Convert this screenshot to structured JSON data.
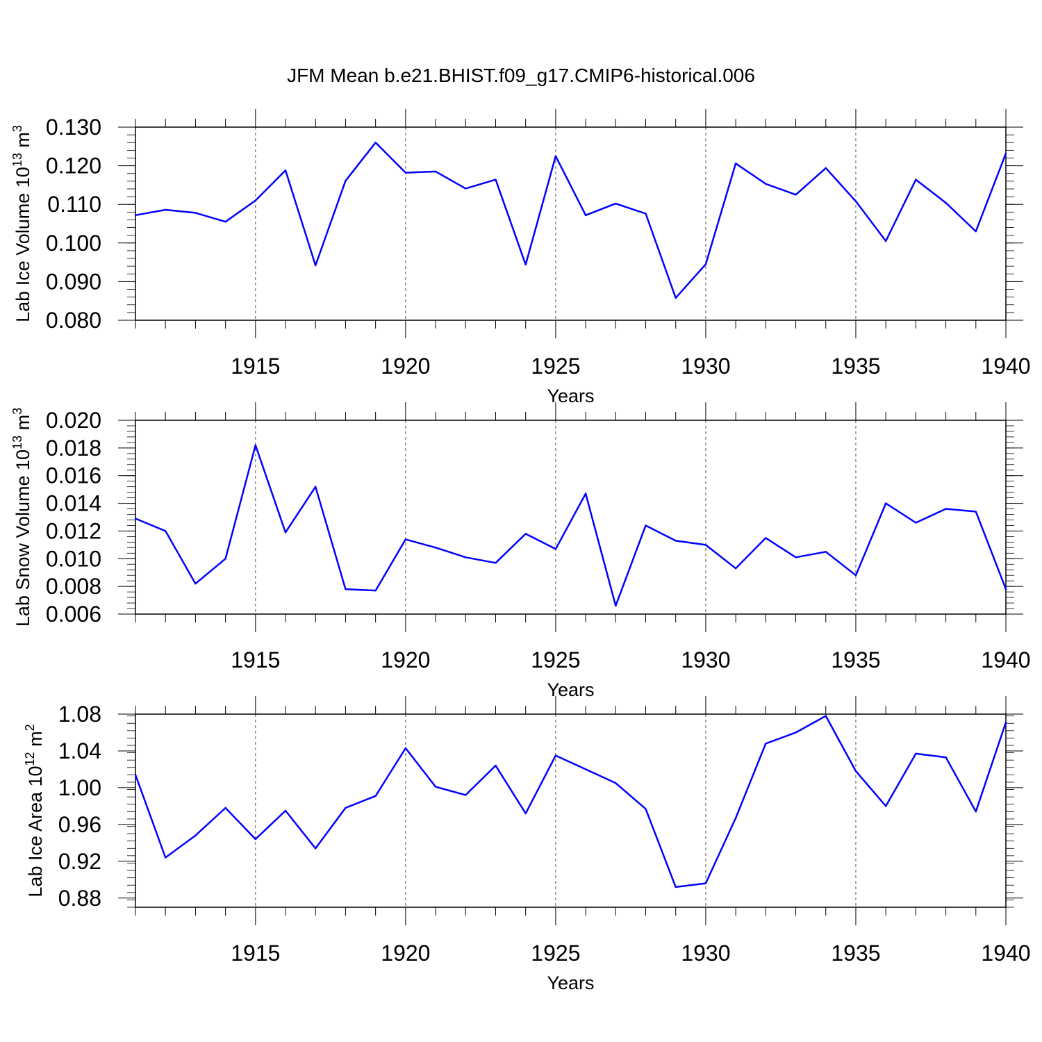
{
  "figure": {
    "title": "JFM Mean b.e21.BHIST.f09_g17.CMIP6-historical.006"
  },
  "chart_data": [
    {
      "type": "line",
      "id": "ice-volume",
      "title": "",
      "xlabel": "Years",
      "ylabel": "Lab Ice Volume",
      "ylabel_units": {
        "base": "10",
        "exp": "13",
        "unit": "m",
        "unit_exp": "3"
      },
      "xlim": [
        1911,
        1940
      ],
      "ylim": [
        0.08,
        0.13
      ],
      "x_ticks": [
        "1915",
        "1920",
        "1925",
        "1930",
        "1935",
        "1940"
      ],
      "y_ticks": [
        "0.080",
        "0.090",
        "0.100",
        "0.110",
        "0.120",
        "0.130"
      ],
      "grid": "dashed vertical at x ticks",
      "line_color": "#0000ff",
      "x": [
        1911,
        1912,
        1913,
        1914,
        1915,
        1916,
        1917,
        1918,
        1919,
        1920,
        1921,
        1922,
        1923,
        1924,
        1925,
        1926,
        1927,
        1928,
        1929,
        1930,
        1931,
        1932,
        1933,
        1934,
        1935,
        1936,
        1937,
        1938,
        1939,
        1940
      ],
      "values": [
        0.1072,
        0.1086,
        0.1078,
        0.1055,
        0.111,
        0.1188,
        0.0942,
        0.1161,
        0.126,
        0.1182,
        0.1185,
        0.1141,
        0.1164,
        0.0944,
        0.1225,
        0.1072,
        0.1102,
        0.1076,
        0.0858,
        0.0945,
        0.1206,
        0.1153,
        0.1125,
        0.1194,
        0.1108,
        0.1005,
        0.1164,
        0.1104,
        0.103,
        0.1232
      ]
    },
    {
      "type": "line",
      "id": "snow-volume",
      "title": "",
      "xlabel": "Years",
      "ylabel": "Lab Snow Volume",
      "ylabel_units": {
        "base": "10",
        "exp": "13",
        "unit": "m",
        "unit_exp": "3"
      },
      "xlim": [
        1911,
        1940
      ],
      "ylim": [
        0.006,
        0.02
      ],
      "x_ticks": [
        "1915",
        "1920",
        "1925",
        "1930",
        "1935",
        "1940"
      ],
      "y_ticks": [
        "0.006",
        "0.008",
        "0.010",
        "0.012",
        "0.014",
        "0.016",
        "0.018",
        "0.020"
      ],
      "grid": "dashed vertical at x ticks",
      "line_color": "#0000ff",
      "x": [
        1911,
        1912,
        1913,
        1914,
        1915,
        1916,
        1917,
        1918,
        1919,
        1920,
        1921,
        1922,
        1923,
        1924,
        1925,
        1926,
        1927,
        1928,
        1929,
        1930,
        1931,
        1932,
        1933,
        1934,
        1935,
        1936,
        1937,
        1938,
        1939,
        1940
      ],
      "values": [
        0.0129,
        0.012,
        0.0082,
        0.01,
        0.0182,
        0.0119,
        0.0152,
        0.0078,
        0.0077,
        0.0114,
        0.0108,
        0.0101,
        0.0097,
        0.0118,
        0.0107,
        0.0147,
        0.0066,
        0.0124,
        0.0113,
        0.011,
        0.0093,
        0.0115,
        0.0101,
        0.0105,
        0.0088,
        0.014,
        0.0126,
        0.0136,
        0.0134,
        0.0078
      ]
    },
    {
      "type": "line",
      "id": "ice-area",
      "title": "",
      "xlabel": "Years",
      "ylabel": "Lab Ice Area",
      "ylabel_units": {
        "base": "10",
        "exp": "12",
        "unit": "m",
        "unit_exp": "2"
      },
      "xlim": [
        1911,
        1940
      ],
      "ylim": [
        0.87,
        1.08
      ],
      "x_ticks": [
        "1915",
        "1920",
        "1925",
        "1930",
        "1935",
        "1940"
      ],
      "y_ticks": [
        "0.88",
        "0.92",
        "0.96",
        "1.00",
        "1.04",
        "1.08"
      ],
      "grid": "dashed vertical at x ticks",
      "line_color": "#0000ff",
      "x": [
        1911,
        1912,
        1913,
        1914,
        1915,
        1916,
        1917,
        1918,
        1919,
        1920,
        1921,
        1922,
        1923,
        1924,
        1925,
        1926,
        1927,
        1928,
        1929,
        1930,
        1931,
        1932,
        1933,
        1934,
        1935,
        1936,
        1937,
        1938,
        1939,
        1940
      ],
      "values": [
        1.014,
        0.924,
        0.948,
        0.978,
        0.944,
        0.975,
        0.934,
        0.978,
        0.991,
        1.043,
        1.001,
        0.992,
        1.024,
        0.972,
        1.035,
        1.02,
        1.005,
        0.977,
        0.892,
        0.896,
        0.967,
        1.048,
        1.06,
        1.078,
        1.018,
        0.98,
        1.037,
        1.033,
        0.974,
        1.071
      ]
    }
  ]
}
